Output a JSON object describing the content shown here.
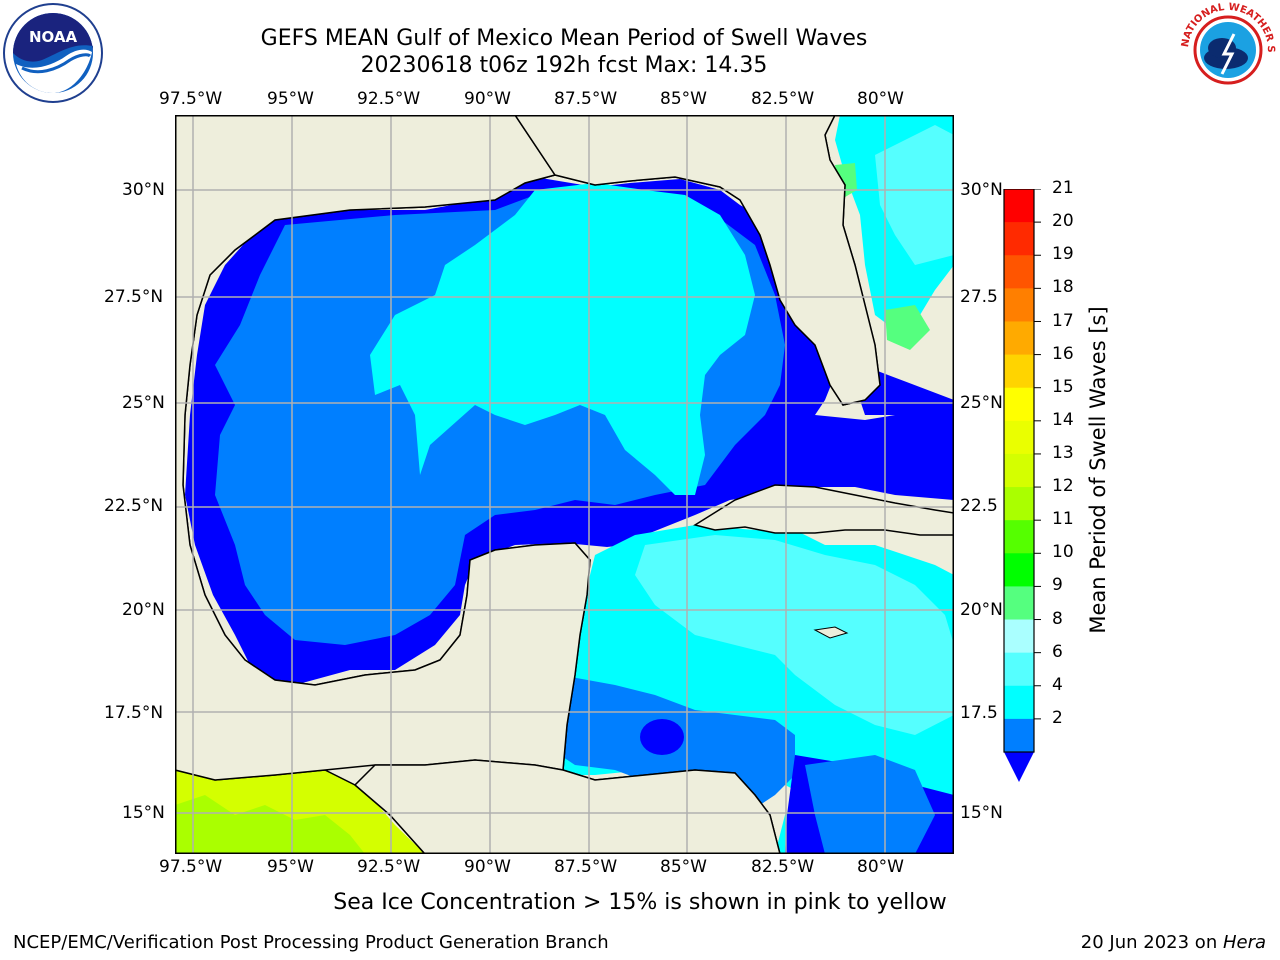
{
  "title_line1": "GEFS MEAN Gulf of Mexico Mean Period of Swell Waves",
  "title_line2": "20230618 t06z 192h fcst   Max: 14.35",
  "logos": {
    "left": "noaa-logo",
    "left_text": "NOAA",
    "right": "nws-logo",
    "right_text": "NATIONAL WEATHER SERVICE"
  },
  "lon_labels": [
    "97.5°W",
    "95°W",
    "92.5°W",
    "90°W",
    "87.5°W",
    "85°W",
    "82.5°W",
    "80°W"
  ],
  "lat_labels_left": [
    "30°N",
    "27.5°N",
    "25°N",
    "22.5°N",
    "20°N",
    "17.5°N",
    "15°N"
  ],
  "lat_labels_right": [
    "30°N",
    "27.5",
    "25°N",
    "22.5",
    "20°N",
    "17.5",
    "15°N"
  ],
  "colorbar": {
    "label": "Mean Period of Swell Waves [s]",
    "ticks": [
      "21",
      "20",
      "19",
      "18",
      "17",
      "16",
      "15",
      "14",
      "13",
      "12",
      "11",
      "10",
      "9",
      "8",
      "6",
      "4",
      "2"
    ],
    "colors": [
      "#ff0000",
      "#ff2a00",
      "#ff5500",
      "#ff7f00",
      "#ffaa00",
      "#ffd400",
      "#ffff00",
      "#eaff00",
      "#d4ff00",
      "#aaff00",
      "#55ff00",
      "#00ff00",
      "#55ff7f",
      "#aaffff",
      "#55ffff",
      "#00ffff",
      "#007fff"
    ],
    "under_color": "#0000ff"
  },
  "map_colors": {
    "land": "#eeeedc",
    "deep_blue": "#0000ff",
    "medium_blue": "#007fff",
    "cyan": "#00ffff",
    "light_cyan": "#55ffff",
    "green": "#55ff7f",
    "lime": "#d4ff00",
    "grid": "#b0b0b0"
  },
  "caption": "Sea Ice Concentration > 15% is shown in pink to yellow",
  "footer_left": "NCEP/EMC/Verification Post Processing Product Generation Branch",
  "footer_right_date": "20 Jun 2023 on ",
  "footer_right_host": "Hera"
}
